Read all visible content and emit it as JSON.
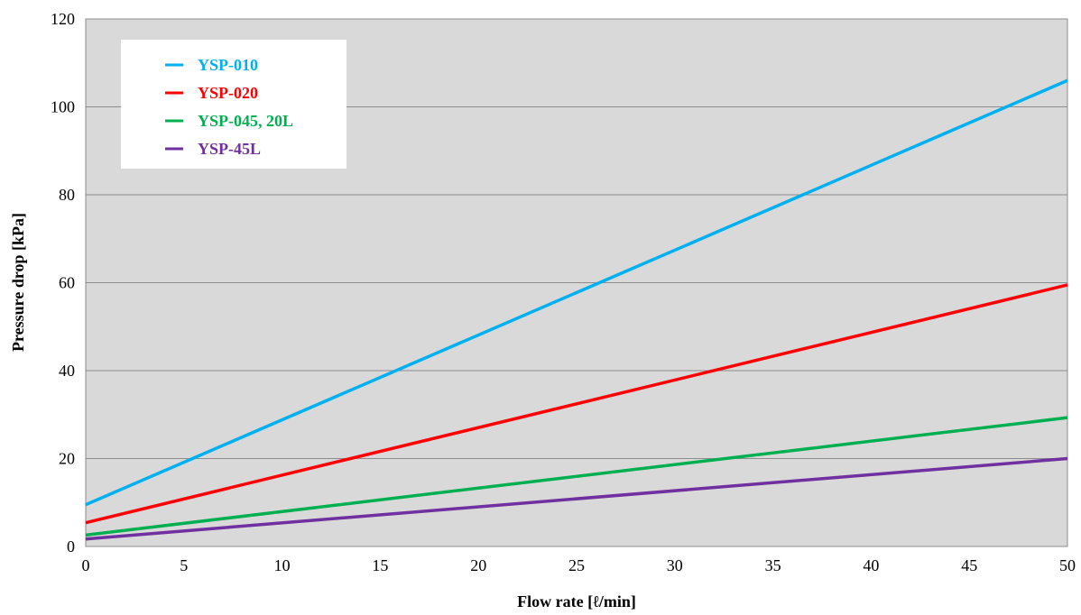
{
  "chart_data": {
    "type": "line",
    "title": "",
    "xlabel": "Flow rate [ℓ/min]",
    "ylabel": "Pressure drop [kPa]",
    "xlim": [
      0,
      50
    ],
    "ylim": [
      0,
      120
    ],
    "x_ticks": [
      0,
      5,
      10,
      15,
      20,
      25,
      30,
      35,
      40,
      45,
      50
    ],
    "y_ticks": [
      0,
      20,
      40,
      60,
      80,
      100,
      120
    ],
    "grid": "horizontal",
    "plot_background": "#d9d9d9",
    "legend_position": "top-left",
    "series": [
      {
        "name": "YSP-010",
        "color": "#00b0f0",
        "x": [
          0,
          50
        ],
        "values": [
          9.5,
          106
        ]
      },
      {
        "name": "YSP-020",
        "color": "#ff0000",
        "x": [
          0,
          50
        ],
        "values": [
          5.4,
          59.5
        ]
      },
      {
        "name": "YSP-045, 20L",
        "color": "#00b050",
        "x": [
          0,
          50
        ],
        "values": [
          2.6,
          29.3
        ]
      },
      {
        "name": "YSP-45L",
        "color": "#7030a0",
        "x": [
          0,
          50
        ],
        "values": [
          1.7,
          20
        ]
      }
    ]
  }
}
